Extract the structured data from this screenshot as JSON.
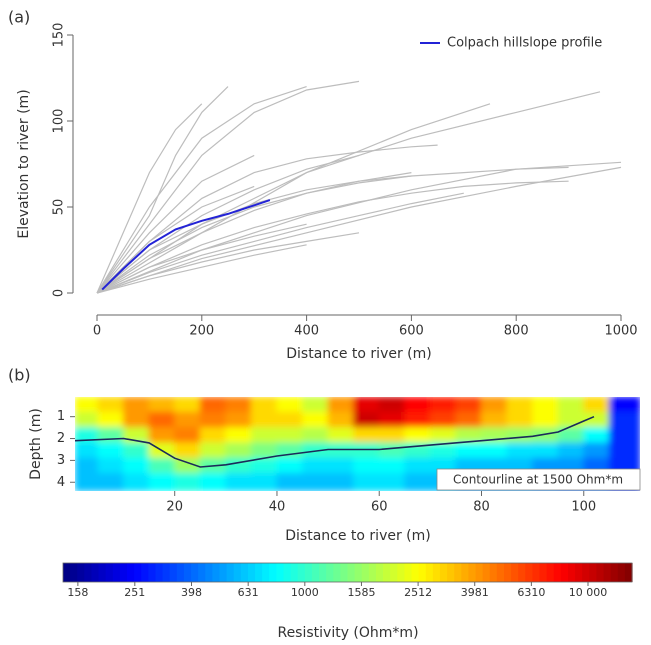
{
  "chart_data": [
    {
      "type": "line",
      "panel_label": "(a)",
      "x_label": "Distance to river (m)",
      "y_label": "Elevation to river (m)",
      "xlim": [
        0,
        1000
      ],
      "ylim": [
        0,
        150
      ],
      "xticks": [
        0,
        200,
        400,
        600,
        800,
        1000
      ],
      "yticks": [
        0,
        50,
        100,
        150
      ],
      "legend": "top-right",
      "series": [
        {
          "color": "#bdbdbd",
          "x": [
            0,
            100,
            200,
            300,
            400,
            500
          ],
          "values": [
            0,
            40,
            80,
            105,
            118,
            123
          ]
        },
        {
          "color": "#bdbdbd",
          "x": [
            0,
            100,
            150,
            200,
            250
          ],
          "values": [
            0,
            45,
            80,
            105,
            120
          ]
        },
        {
          "color": "#bdbdbd",
          "x": [
            0,
            100,
            200,
            300,
            400
          ],
          "values": [
            0,
            50,
            90,
            110,
            120
          ]
        },
        {
          "color": "#bdbdbd",
          "x": [
            0,
            200,
            400,
            600,
            800,
            960
          ],
          "values": [
            0,
            40,
            70,
            90,
            105,
            117
          ]
        },
        {
          "color": "#bdbdbd",
          "x": [
            0,
            200,
            400,
            600,
            800,
            1000
          ],
          "values": [
            0,
            25,
            45,
            60,
            72,
            76
          ]
        },
        {
          "color": "#bdbdbd",
          "x": [
            0,
            200,
            400,
            600,
            750
          ],
          "values": [
            0,
            35,
            70,
            95,
            110
          ]
        },
        {
          "color": "#bdbdbd",
          "x": [
            0,
            200,
            400,
            600,
            800,
            1000
          ],
          "values": [
            0,
            20,
            35,
            50,
            62,
            73
          ]
        },
        {
          "color": "#bdbdbd",
          "x": [
            0,
            100,
            200,
            300,
            400,
            500,
            600
          ],
          "values": [
            0,
            20,
            35,
            48,
            58,
            65,
            70
          ]
        },
        {
          "color": "#bdbdbd",
          "x": [
            0,
            100,
            200,
            300,
            400
          ],
          "values": [
            0,
            15,
            25,
            33,
            40
          ]
        },
        {
          "color": "#bdbdbd",
          "x": [
            0,
            100,
            200,
            300,
            400,
            500,
            600,
            700
          ],
          "values": [
            0,
            12,
            22,
            30,
            38,
            45,
            52,
            58
          ]
        },
        {
          "color": "#bdbdbd",
          "x": [
            0,
            100,
            200,
            300
          ],
          "values": [
            0,
            30,
            50,
            62
          ]
        },
        {
          "color": "#bdbdbd",
          "x": [
            0,
            100,
            200,
            300,
            400,
            500
          ],
          "values": [
            0,
            25,
            45,
            60,
            72,
            80
          ]
        },
        {
          "color": "#bdbdbd",
          "x": [
            0,
            100,
            200,
            300,
            400,
            500,
            600,
            650
          ],
          "values": [
            0,
            30,
            55,
            70,
            78,
            82,
            85,
            86
          ]
        },
        {
          "color": "#bdbdbd",
          "x": [
            0,
            100,
            200,
            300,
            400,
            500
          ],
          "values": [
            0,
            10,
            18,
            25,
            30,
            35
          ]
        },
        {
          "color": "#bdbdbd",
          "x": [
            0,
            100,
            200,
            300,
            400,
            500,
            600,
            700,
            800,
            900
          ],
          "values": [
            0,
            15,
            28,
            38,
            46,
            53,
            58,
            62,
            64,
            65
          ]
        },
        {
          "color": "#bdbdbd",
          "x": [
            0,
            100,
            200,
            300
          ],
          "values": [
            0,
            35,
            65,
            80
          ]
        },
        {
          "color": "#bdbdbd",
          "x": [
            0,
            50,
            100,
            150,
            200
          ],
          "values": [
            0,
            35,
            70,
            95,
            110
          ]
        },
        {
          "color": "#bdbdbd",
          "x": [
            0,
            100,
            200,
            300,
            400,
            500,
            600
          ],
          "values": [
            0,
            25,
            40,
            52,
            60,
            65,
            68
          ]
        },
        {
          "color": "#bdbdbd",
          "x": [
            0,
            100,
            200,
            300,
            400,
            500,
            600,
            700,
            800,
            900
          ],
          "values": [
            0,
            22,
            38,
            50,
            58,
            64,
            68,
            70,
            72,
            73
          ]
        },
        {
          "color": "#bdbdbd",
          "x": [
            0,
            100,
            200,
            300,
            400
          ],
          "values": [
            0,
            8,
            15,
            22,
            28
          ]
        },
        {
          "name": "Colpach hillslope profile",
          "color": "#2323d6",
          "x": [
            10,
            50,
            100,
            150,
            200,
            250,
            300,
            330
          ],
          "values": [
            2,
            14,
            28,
            37,
            42,
            46,
            51,
            54
          ]
        }
      ]
    },
    {
      "type": "heatmap",
      "panel_label": "(b)",
      "x_label": "Distance to river (m)",
      "y_label": "Depth (m)",
      "xlim": [
        0.5,
        111
      ],
      "ylim": [
        4.4,
        0.1
      ],
      "xticks": [
        20,
        40,
        60,
        80,
        100
      ],
      "yticks": [
        1,
        2,
        3,
        4
      ],
      "x_bins": [
        0.5,
        5,
        10,
        15,
        20,
        25,
        30,
        35,
        40,
        45,
        50,
        55,
        60,
        65,
        70,
        75,
        80,
        85,
        90,
        95,
        100,
        105,
        111
      ],
      "y_bins": [
        0.1,
        0.8,
        1.5,
        2.2,
        2.9,
        3.6,
        4.4
      ],
      "values": [
        [
          2500,
          3000,
          4000,
          3500,
          3000,
          5000,
          4500,
          3000,
          2500,
          2000,
          4000,
          9000,
          10000,
          8000,
          7000,
          6000,
          4000,
          3000,
          2500,
          2000,
          3000,
          250
        ],
        [
          2000,
          2500,
          4000,
          5000,
          4000,
          4500,
          4000,
          3000,
          3000,
          2500,
          3500,
          10000,
          9000,
          7000,
          6000,
          5000,
          3500,
          3000,
          2500,
          2000,
          2000,
          300
        ],
        [
          900,
          1200,
          2000,
          4000,
          4500,
          3000,
          2500,
          2000,
          2000,
          1800,
          2200,
          3000,
          3000,
          2500,
          2200,
          1800,
          1700,
          1600,
          1500,
          1200,
          800,
          300
        ],
        [
          700,
          800,
          1000,
          2200,
          3000,
          2000,
          1700,
          1400,
          1200,
          1000,
          1000,
          1000,
          1100,
          1000,
          900,
          800,
          800,
          700,
          700,
          600,
          500,
          300
        ],
        [
          600,
          700,
          800,
          1100,
          1600,
          1200,
          1000,
          900,
          800,
          700,
          700,
          800,
          800,
          700,
          700,
          600,
          600,
          600,
          500,
          500,
          400,
          300
        ],
        [
          600,
          600,
          700,
          800,
          900,
          800,
          700,
          700,
          600,
          600,
          600,
          700,
          700,
          600,
          600,
          500,
          500,
          500,
          450,
          400,
          400,
          300
        ]
      ],
      "contour": {
        "label": "Contourline at 1500 Ohm*m",
        "color": "#1a2a5a",
        "x": [
          0.5,
          10,
          15,
          20,
          25,
          30,
          40,
          50,
          60,
          70,
          80,
          90,
          95,
          100,
          102
        ],
        "values": [
          2.1,
          2.0,
          2.2,
          2.9,
          3.3,
          3.2,
          2.8,
          2.5,
          2.5,
          2.3,
          2.1,
          1.9,
          1.7,
          1.2,
          1.0
        ]
      },
      "colorbar": {
        "label": "Resistivity (Ohm*m)",
        "log": true,
        "colormap": "jet",
        "lim": [
          140,
          14300
        ],
        "ticks": [
          158,
          251,
          398,
          631,
          1000,
          1585,
          2512,
          3981,
          6310,
          {
            "value": 10000,
            "label": "10 000"
          }
        ]
      }
    }
  ]
}
